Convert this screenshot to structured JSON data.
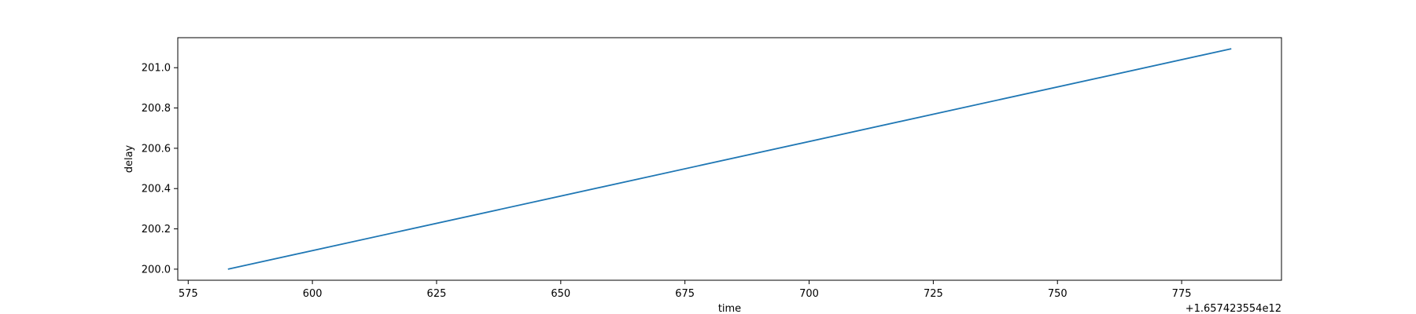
{
  "chart_data": {
    "type": "line",
    "title": "",
    "xlabel": "time",
    "ylabel": "delay",
    "x_offset_label": "+1.657423554e12",
    "x_ticks": [
      575,
      600,
      625,
      650,
      675,
      700,
      725,
      750,
      775
    ],
    "x_tick_labels": [
      "575",
      "600",
      "625",
      "650",
      "675",
      "700",
      "725",
      "750",
      "775"
    ],
    "y_ticks": [
      200.0,
      200.2,
      200.4,
      200.6,
      200.8,
      201.0
    ],
    "y_tick_labels": [
      "200.0",
      "200.2",
      "200.4",
      "200.6",
      "200.8",
      "201.0"
    ],
    "xlim": [
      572.9,
      795.1
    ],
    "ylim": [
      199.945,
      201.149
    ],
    "grid": false,
    "series": [
      {
        "color": "#1f77b4",
        "x": [
          583,
          785
        ],
        "y": [
          200.0,
          201.094
        ]
      }
    ]
  }
}
